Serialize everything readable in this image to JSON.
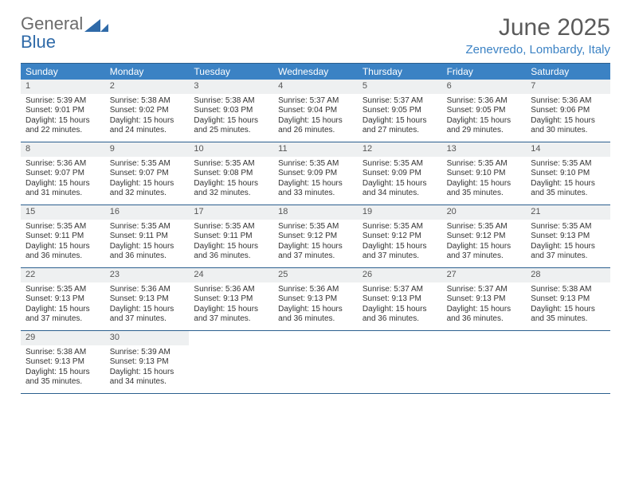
{
  "logo": {
    "text1": "General",
    "text2": "Blue"
  },
  "title": "June 2025",
  "location": "Zenevredo, Lombardy, Italy",
  "colors": {
    "accent": "#3b82c4",
    "line": "#2b5f8e",
    "cell_bg": "#eef0f1",
    "page_bg": "#ffffff",
    "text": "#333333"
  },
  "daysOfWeek": [
    "Sunday",
    "Monday",
    "Tuesday",
    "Wednesday",
    "Thursday",
    "Friday",
    "Saturday"
  ],
  "weeks": [
    [
      {
        "n": "1",
        "sr": "Sunrise: 5:39 AM",
        "ss": "Sunset: 9:01 PM",
        "d1": "Daylight: 15 hours",
        "d2": "and 22 minutes."
      },
      {
        "n": "2",
        "sr": "Sunrise: 5:38 AM",
        "ss": "Sunset: 9:02 PM",
        "d1": "Daylight: 15 hours",
        "d2": "and 24 minutes."
      },
      {
        "n": "3",
        "sr": "Sunrise: 5:38 AM",
        "ss": "Sunset: 9:03 PM",
        "d1": "Daylight: 15 hours",
        "d2": "and 25 minutes."
      },
      {
        "n": "4",
        "sr": "Sunrise: 5:37 AM",
        "ss": "Sunset: 9:04 PM",
        "d1": "Daylight: 15 hours",
        "d2": "and 26 minutes."
      },
      {
        "n": "5",
        "sr": "Sunrise: 5:37 AM",
        "ss": "Sunset: 9:05 PM",
        "d1": "Daylight: 15 hours",
        "d2": "and 27 minutes."
      },
      {
        "n": "6",
        "sr": "Sunrise: 5:36 AM",
        "ss": "Sunset: 9:05 PM",
        "d1": "Daylight: 15 hours",
        "d2": "and 29 minutes."
      },
      {
        "n": "7",
        "sr": "Sunrise: 5:36 AM",
        "ss": "Sunset: 9:06 PM",
        "d1": "Daylight: 15 hours",
        "d2": "and 30 minutes."
      }
    ],
    [
      {
        "n": "8",
        "sr": "Sunrise: 5:36 AM",
        "ss": "Sunset: 9:07 PM",
        "d1": "Daylight: 15 hours",
        "d2": "and 31 minutes."
      },
      {
        "n": "9",
        "sr": "Sunrise: 5:35 AM",
        "ss": "Sunset: 9:07 PM",
        "d1": "Daylight: 15 hours",
        "d2": "and 32 minutes."
      },
      {
        "n": "10",
        "sr": "Sunrise: 5:35 AM",
        "ss": "Sunset: 9:08 PM",
        "d1": "Daylight: 15 hours",
        "d2": "and 32 minutes."
      },
      {
        "n": "11",
        "sr": "Sunrise: 5:35 AM",
        "ss": "Sunset: 9:09 PM",
        "d1": "Daylight: 15 hours",
        "d2": "and 33 minutes."
      },
      {
        "n": "12",
        "sr": "Sunrise: 5:35 AM",
        "ss": "Sunset: 9:09 PM",
        "d1": "Daylight: 15 hours",
        "d2": "and 34 minutes."
      },
      {
        "n": "13",
        "sr": "Sunrise: 5:35 AM",
        "ss": "Sunset: 9:10 PM",
        "d1": "Daylight: 15 hours",
        "d2": "and 35 minutes."
      },
      {
        "n": "14",
        "sr": "Sunrise: 5:35 AM",
        "ss": "Sunset: 9:10 PM",
        "d1": "Daylight: 15 hours",
        "d2": "and 35 minutes."
      }
    ],
    [
      {
        "n": "15",
        "sr": "Sunrise: 5:35 AM",
        "ss": "Sunset: 9:11 PM",
        "d1": "Daylight: 15 hours",
        "d2": "and 36 minutes."
      },
      {
        "n": "16",
        "sr": "Sunrise: 5:35 AM",
        "ss": "Sunset: 9:11 PM",
        "d1": "Daylight: 15 hours",
        "d2": "and 36 minutes."
      },
      {
        "n": "17",
        "sr": "Sunrise: 5:35 AM",
        "ss": "Sunset: 9:11 PM",
        "d1": "Daylight: 15 hours",
        "d2": "and 36 minutes."
      },
      {
        "n": "18",
        "sr": "Sunrise: 5:35 AM",
        "ss": "Sunset: 9:12 PM",
        "d1": "Daylight: 15 hours",
        "d2": "and 37 minutes."
      },
      {
        "n": "19",
        "sr": "Sunrise: 5:35 AM",
        "ss": "Sunset: 9:12 PM",
        "d1": "Daylight: 15 hours",
        "d2": "and 37 minutes."
      },
      {
        "n": "20",
        "sr": "Sunrise: 5:35 AM",
        "ss": "Sunset: 9:12 PM",
        "d1": "Daylight: 15 hours",
        "d2": "and 37 minutes."
      },
      {
        "n": "21",
        "sr": "Sunrise: 5:35 AM",
        "ss": "Sunset: 9:13 PM",
        "d1": "Daylight: 15 hours",
        "d2": "and 37 minutes."
      }
    ],
    [
      {
        "n": "22",
        "sr": "Sunrise: 5:35 AM",
        "ss": "Sunset: 9:13 PM",
        "d1": "Daylight: 15 hours",
        "d2": "and 37 minutes."
      },
      {
        "n": "23",
        "sr": "Sunrise: 5:36 AM",
        "ss": "Sunset: 9:13 PM",
        "d1": "Daylight: 15 hours",
        "d2": "and 37 minutes."
      },
      {
        "n": "24",
        "sr": "Sunrise: 5:36 AM",
        "ss": "Sunset: 9:13 PM",
        "d1": "Daylight: 15 hours",
        "d2": "and 37 minutes."
      },
      {
        "n": "25",
        "sr": "Sunrise: 5:36 AM",
        "ss": "Sunset: 9:13 PM",
        "d1": "Daylight: 15 hours",
        "d2": "and 36 minutes."
      },
      {
        "n": "26",
        "sr": "Sunrise: 5:37 AM",
        "ss": "Sunset: 9:13 PM",
        "d1": "Daylight: 15 hours",
        "d2": "and 36 minutes."
      },
      {
        "n": "27",
        "sr": "Sunrise: 5:37 AM",
        "ss": "Sunset: 9:13 PM",
        "d1": "Daylight: 15 hours",
        "d2": "and 36 minutes."
      },
      {
        "n": "28",
        "sr": "Sunrise: 5:38 AM",
        "ss": "Sunset: 9:13 PM",
        "d1": "Daylight: 15 hours",
        "d2": "and 35 minutes."
      }
    ],
    [
      {
        "n": "29",
        "sr": "Sunrise: 5:38 AM",
        "ss": "Sunset: 9:13 PM",
        "d1": "Daylight: 15 hours",
        "d2": "and 35 minutes."
      },
      {
        "n": "30",
        "sr": "Sunrise: 5:39 AM",
        "ss": "Sunset: 9:13 PM",
        "d1": "Daylight: 15 hours",
        "d2": "and 34 minutes."
      },
      null,
      null,
      null,
      null,
      null
    ]
  ]
}
